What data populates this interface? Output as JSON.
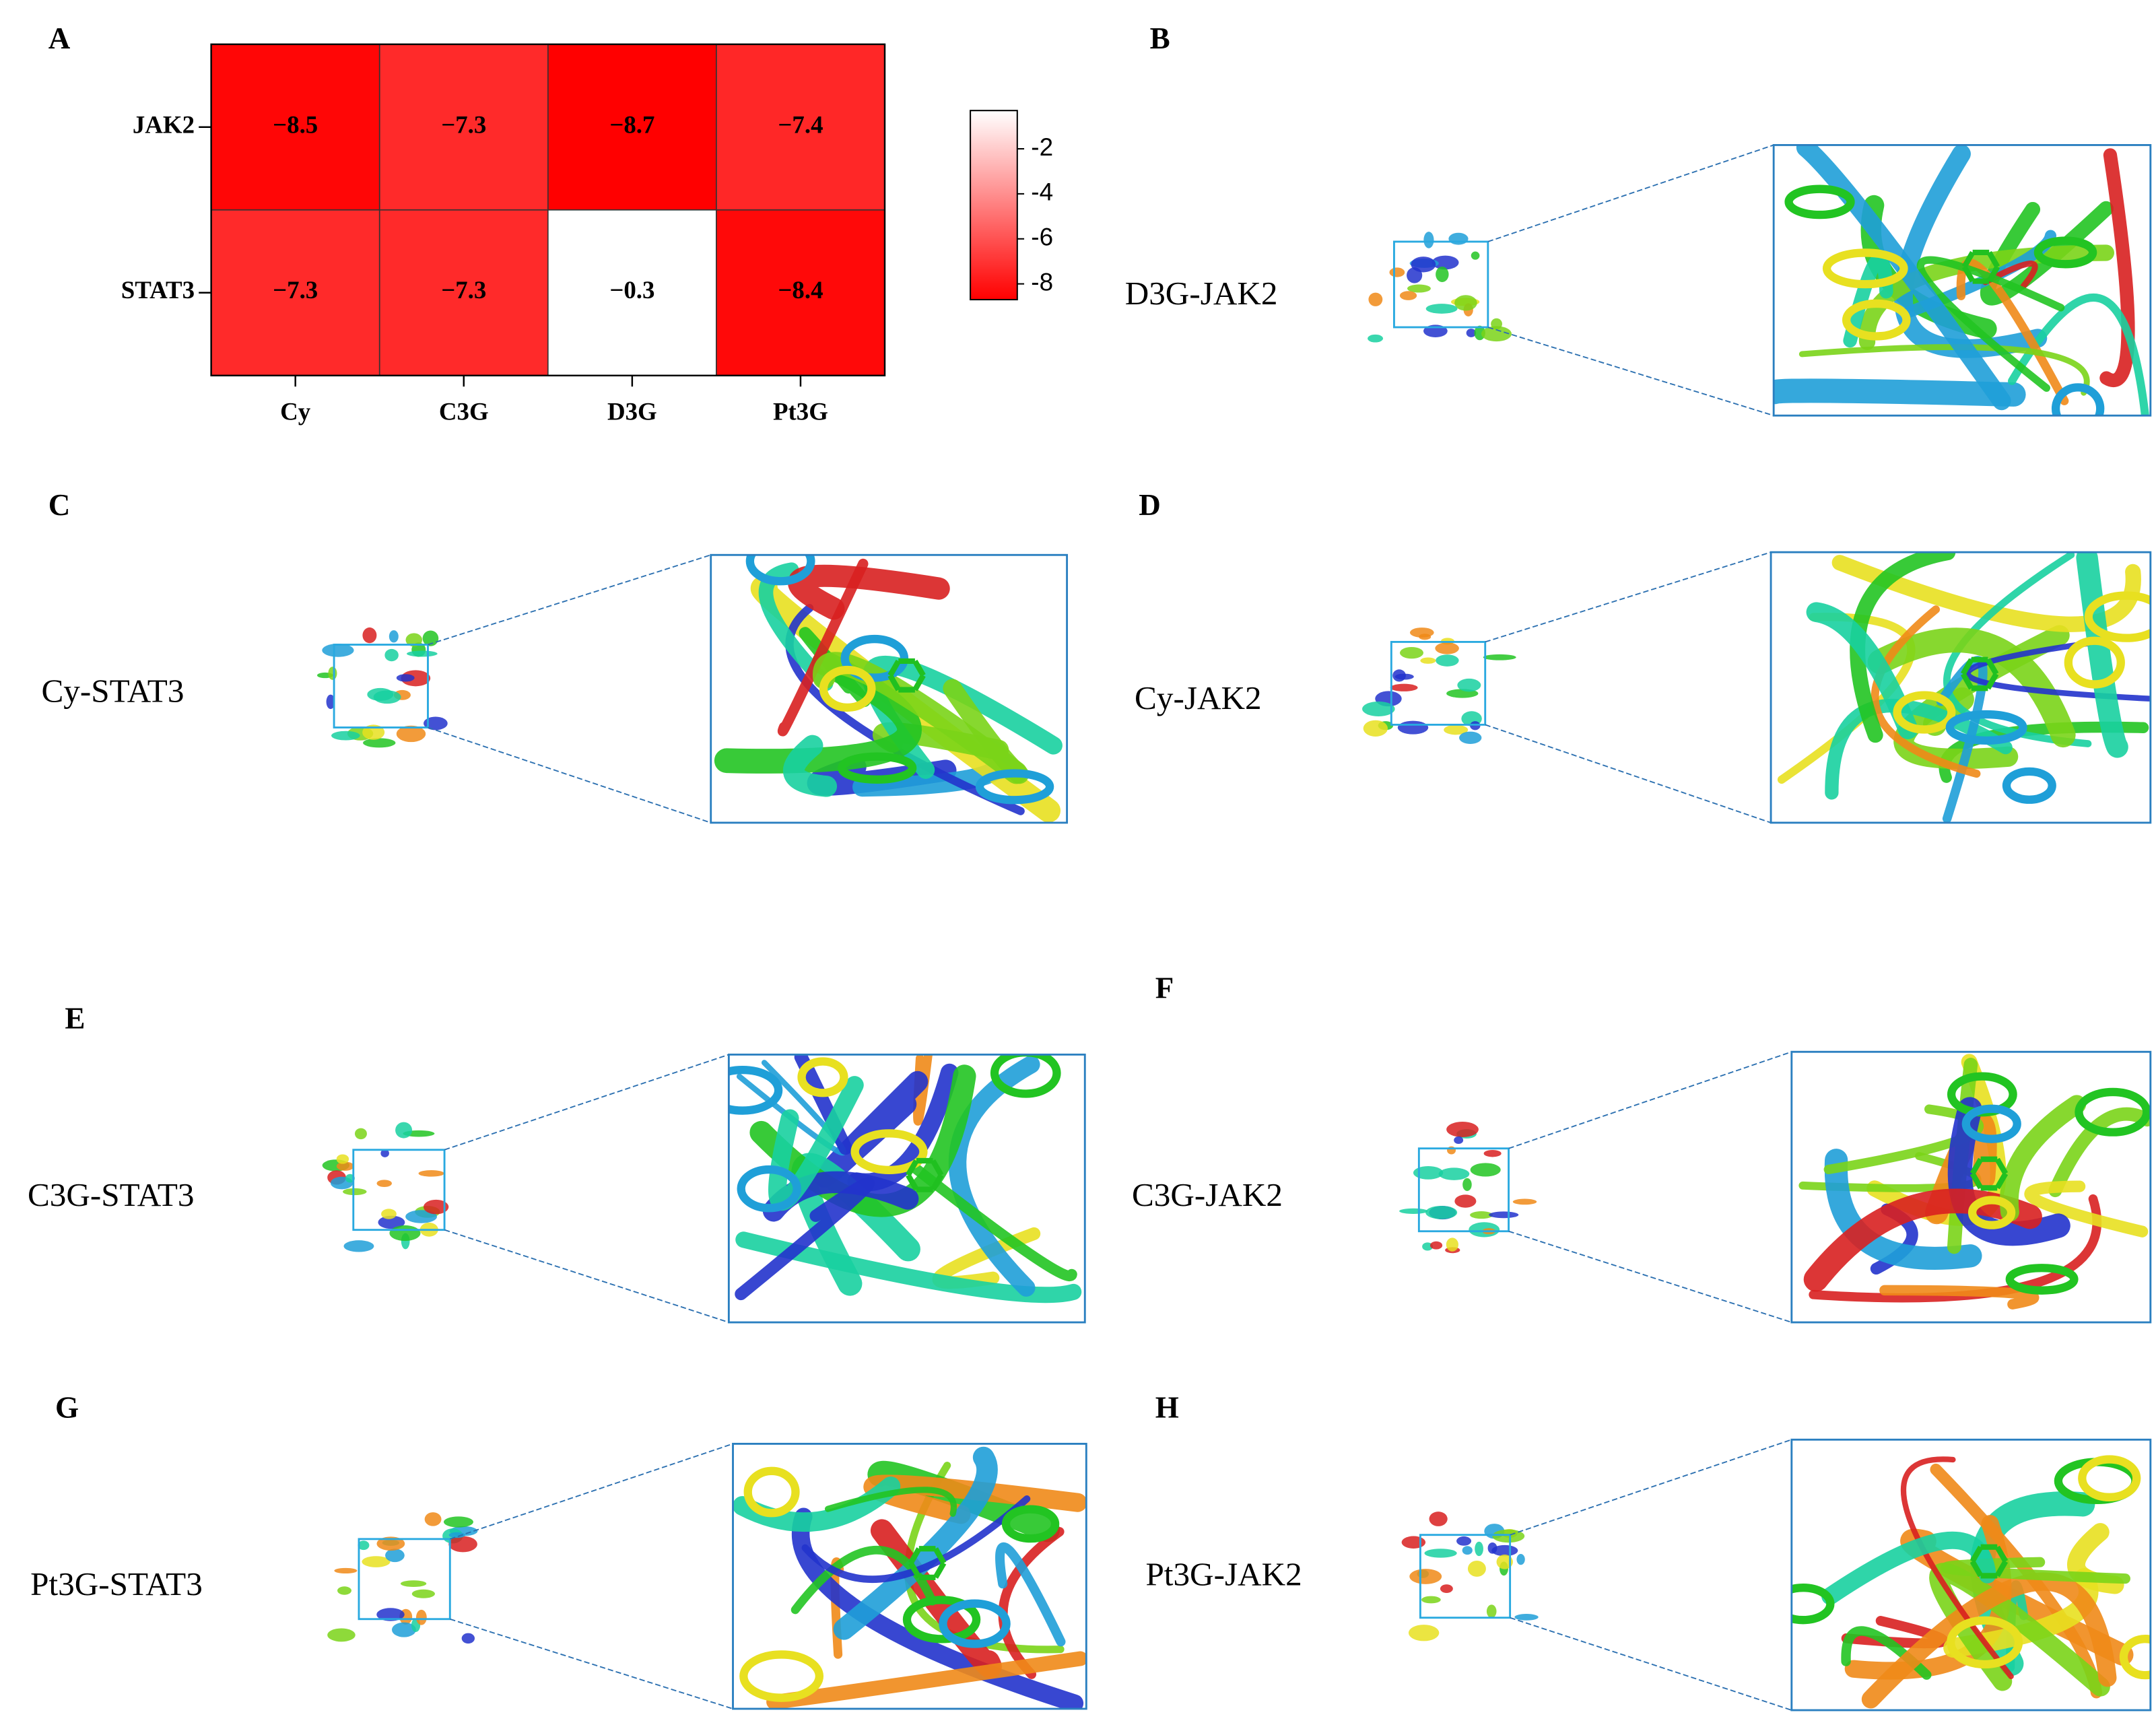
{
  "chart_data": {
    "type": "heatmap",
    "panel_label": "A",
    "rows": [
      "JAK2",
      "STAT3"
    ],
    "columns": [
      "Cy",
      "C3G",
      "D3G",
      "Pt3G"
    ],
    "values": [
      [
        -8.5,
        -7.3,
        -8.7,
        -7.4
      ],
      [
        -7.3,
        -7.3,
        -0.3,
        -8.4
      ]
    ],
    "value_labels": [
      [
        "−8.5",
        "−7.3",
        "−8.7",
        "−7.4"
      ],
      [
        "−7.3",
        "−7.3",
        "−0.3",
        "−8.4"
      ]
    ],
    "color_low": "#ff0000",
    "color_high": "#ffffff",
    "clim": [
      -8.7,
      -0.3
    ],
    "colorbar_ticks": [
      -2,
      -4,
      -6,
      -8
    ]
  },
  "panels": [
    {
      "letter": "B",
      "name": "D3G-JAK2"
    },
    {
      "letter": "C",
      "name": "Cy-STAT3"
    },
    {
      "letter": "D",
      "name": "Cy-JAK2"
    },
    {
      "letter": "E",
      "name": "C3G-STAT3"
    },
    {
      "letter": "F",
      "name": "C3G-JAK2"
    },
    {
      "letter": "G",
      "name": "Pt3G-STAT3"
    },
    {
      "letter": "H",
      "name": "Pt3G-JAK2"
    }
  ]
}
